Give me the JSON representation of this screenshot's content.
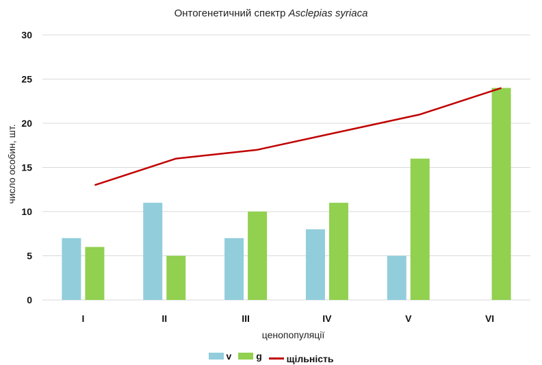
{
  "chart_data": {
    "type": "bar",
    "title": "Онтогенетичний спектр",
    "title_italic": "Asclepias syriaca",
    "xlabel": "ценопопуляції",
    "ylabel": "число особин, шт.",
    "categories": [
      "I",
      "II",
      "III",
      "IV",
      "V",
      "VI"
    ],
    "ylim": [
      0,
      30
    ],
    "yticks": [
      0,
      5,
      10,
      15,
      20,
      25,
      30
    ],
    "grid": true,
    "legend_position": "bottom",
    "series": [
      {
        "name": "v",
        "kind": "bar",
        "color": "#92CDDC",
        "values": [
          7,
          11,
          7,
          8,
          5,
          0
        ]
      },
      {
        "name": "g",
        "kind": "bar",
        "color": "#92D050",
        "values": [
          6,
          5,
          10,
          11,
          16,
          24
        ]
      },
      {
        "name": "щільність",
        "kind": "line",
        "color": "#C00000",
        "values": [
          13,
          16,
          17,
          19,
          21,
          24
        ]
      }
    ]
  }
}
